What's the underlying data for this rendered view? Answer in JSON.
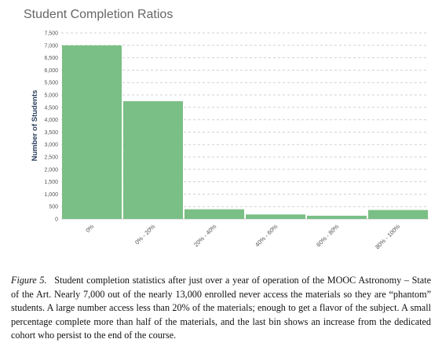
{
  "chart_data": {
    "type": "bar",
    "title": "Student Completion Ratios",
    "ylabel": "Number of Students",
    "xlabel": "",
    "ylim": [
      0,
      7500
    ],
    "yticks": [
      0,
      500,
      1000,
      1500,
      2000,
      2500,
      3000,
      3500,
      4000,
      4500,
      5000,
      5500,
      6000,
      6500,
      7000,
      7500
    ],
    "ytick_labels": [
      "0",
      "500",
      "1,000",
      "1,500",
      "2,000",
      "2,500",
      "3,000",
      "3,500",
      "4,000",
      "4,500",
      "5,000",
      "5,500",
      "6,000",
      "6,500",
      "7,000",
      "7,500"
    ],
    "categories": [
      "0%",
      "0% - 20%",
      "20% - 40%",
      "40% - 60%",
      "60% - 80%",
      "80% - 100%"
    ],
    "values": [
      7000,
      4750,
      390,
      180,
      130,
      360
    ],
    "bar_color": "#7abf85",
    "grid": true
  },
  "caption": {
    "label": "Figure 5.",
    "text": "Student completion statistics after just over a year of operation of the MOOC Astronomy – State of the Art. Nearly 7,000 out of the nearly 13,000 enrolled never access the materials so they are “phantom” students. A large number access less than 20% of the materials; enough to get a flavor of the subject. A small percentage complete more than half of the materials, and the last bin shows an increase from the dedicated cohort who persist to the end of the course."
  }
}
